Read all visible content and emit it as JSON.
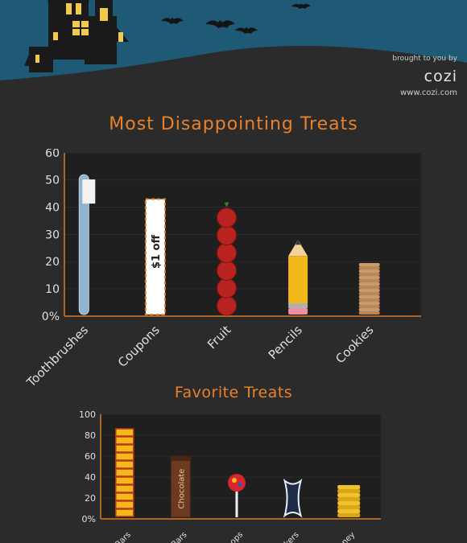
{
  "brand": {
    "tagline": "brought to you by",
    "logo": "cozi",
    "url": "www.cozi.com"
  },
  "colors": {
    "sky": "#1e5a75",
    "ground": "#2b2b2b",
    "plot_bg": "#1f1f1f",
    "accent": "#e8822a",
    "axis": "#d97a2a"
  },
  "chart_data": [
    {
      "type": "bar",
      "title": "Most Disappointing Treats",
      "categories": [
        "Toothbrushes",
        "Coupons",
        "Fruit",
        "Pencils",
        "Cookies"
      ],
      "values": [
        52,
        43,
        40,
        28,
        20
      ],
      "yticks": [
        "0%",
        "10",
        "20",
        "30",
        "40",
        "50",
        "60"
      ],
      "ylim": [
        0,
        60
      ],
      "coupon_label": "$1 off",
      "icons": [
        "toothbrush-icon",
        "coupon-icon",
        "apple-stack-icon",
        "pencil-icon",
        "cookie-stack-icon"
      ]
    },
    {
      "type": "bar",
      "title": "Favorite Treats",
      "categories": [
        "Bars",
        "Bars",
        "oops",
        "ckers",
        "oney"
      ],
      "values": [
        85,
        60,
        43,
        38,
        33
      ],
      "yticks": [
        "0%",
        "20",
        "40",
        "60",
        "80",
        "100"
      ],
      "ylim": [
        0,
        100
      ],
      "chocolate_label": "Chocolate",
      "icons": [
        "candy-bar-stack-icon",
        "chocolate-bar-icon",
        "lollipop-icon",
        "bat-sticker-icon",
        "coin-stack-icon"
      ]
    }
  ]
}
